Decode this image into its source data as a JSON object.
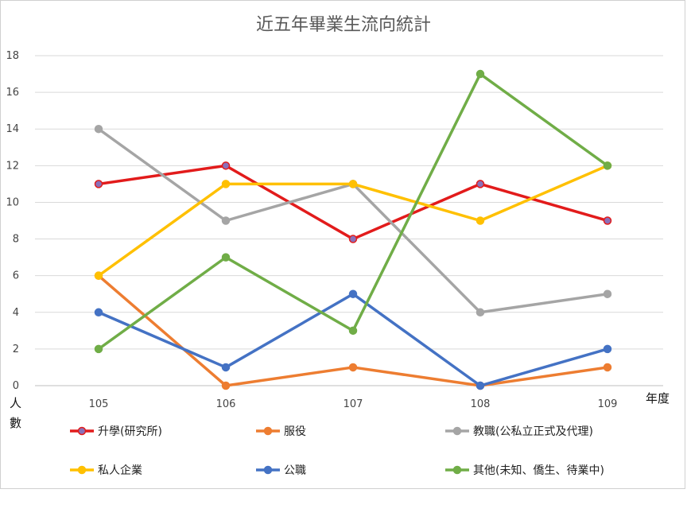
{
  "chart_data": {
    "type": "line",
    "title": "近五年畢業生流向統計",
    "xlabel": "年度",
    "ylabel": "人數",
    "categories": [
      "105",
      "106",
      "107",
      "108",
      "109"
    ],
    "ylim": [
      0,
      18
    ],
    "yticks": [
      0,
      2,
      4,
      6,
      8,
      10,
      12,
      14,
      16,
      18
    ],
    "grid": true,
    "legend_position": "bottom",
    "series": [
      {
        "name": "升學(研究所)",
        "color": "#e21b1b",
        "marker_fill": "#8a70b8",
        "values": [
          11,
          12,
          8,
          11,
          9
        ]
      },
      {
        "name": "服役",
        "color": "#ed7d31",
        "values": [
          6,
          0,
          1,
          0,
          1
        ]
      },
      {
        "name": "教職(公私立正式及代理)",
        "color": "#a5a5a5",
        "values": [
          14,
          9,
          11,
          4,
          5
        ]
      },
      {
        "name": "私人企業",
        "color": "#ffc000",
        "values": [
          6,
          11,
          11,
          9,
          12
        ]
      },
      {
        "name": "公職",
        "color": "#4472c4",
        "values": [
          4,
          1,
          5,
          0,
          2
        ]
      },
      {
        "name": "其他(未知、僑生、待業中)",
        "color": "#70ad47",
        "values": [
          2,
          7,
          3,
          17,
          12
        ]
      }
    ]
  }
}
